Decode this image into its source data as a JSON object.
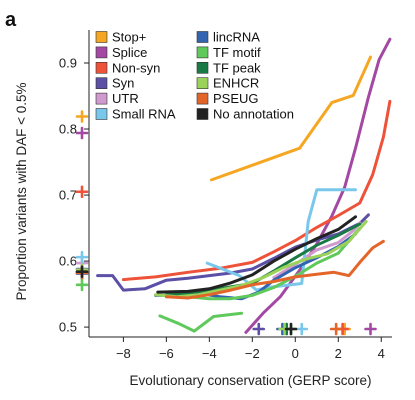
{
  "chart_data": {
    "type": "line",
    "panel_label": "a",
    "title": "",
    "xlabel": "Evolutionary conservation (GERP score)",
    "ylabel": "Proportion variants with DAF < 0.5%",
    "xlim": [
      -9.6,
      4.5
    ],
    "ylim": [
      0.485,
      0.95
    ],
    "x_ticks": [
      -8,
      -6,
      -4,
      -2,
      0,
      2,
      4
    ],
    "x_tick_labels": [
      "−8",
      "−6",
      "−4",
      "−2",
      "0",
      "2",
      "4"
    ],
    "y_ticks": [
      0.5,
      0.6,
      0.7,
      0.8,
      0.9
    ],
    "y_tick_labels": [
      "0.5",
      "0.6",
      "0.7",
      "0.8",
      "0.9"
    ],
    "grid": false,
    "legend_position": "top",
    "series": [
      {
        "name": "Stop+",
        "color": "#f5a623",
        "x": [
          -3.9,
          0.2,
          1.7,
          2.7,
          3.5
        ],
        "y": [
          0.723,
          0.771,
          0.84,
          0.851,
          0.909
        ],
        "marker_y": 0.819,
        "marker_x": 2.3
      },
      {
        "name": "Splice",
        "color": "#a349a4",
        "x": [
          -2.3,
          -1.5,
          -0.7,
          0.2,
          1.0,
          1.7,
          2.3,
          2.8,
          3.4,
          3.9,
          4.4
        ],
        "y": [
          0.492,
          0.521,
          0.546,
          0.586,
          0.626,
          0.668,
          0.712,
          0.771,
          0.848,
          0.905,
          0.936
        ],
        "marker_y": 0.794,
        "marker_x": 3.5
      },
      {
        "name": "Non-syn",
        "color": "#ee5239",
        "x": [
          -8.0,
          -6.5,
          -5.0,
          -3.5,
          -2.0,
          -1.0,
          0.0,
          1.0,
          2.0,
          3.0,
          3.6,
          4.1,
          4.4
        ],
        "y": [
          0.572,
          0.576,
          0.583,
          0.589,
          0.598,
          0.614,
          0.631,
          0.651,
          0.669,
          0.688,
          0.731,
          0.788,
          0.842
        ],
        "marker_y": 0.705,
        "marker_x": 2.2
      },
      {
        "name": "Syn",
        "color": "#5b4fa6",
        "x": [
          -9.2,
          -8.5,
          -8.0,
          -7.0,
          -6.0,
          -5.0,
          -4.0,
          -3.0,
          -2.0,
          -1.0,
          0.0,
          1.0,
          2.0,
          3.0,
          3.4
        ],
        "y": [
          0.578,
          0.578,
          0.556,
          0.558,
          0.571,
          0.574,
          0.578,
          0.582,
          0.588,
          0.604,
          0.621,
          0.632,
          0.641,
          0.657,
          0.67
        ],
        "marker_y": 0.588,
        "marker_x": -1.7
      },
      {
        "name": "UTR",
        "color": "#cf9bcf",
        "x": [
          -1.0,
          0.0,
          1.0,
          2.0,
          2.7,
          3.0
        ],
        "y": [
          0.575,
          0.595,
          0.617,
          0.628,
          0.646,
          0.658
        ],
        "marker_y": 0.597,
        "marker_x": -0.4
      },
      {
        "name": "Small RNA",
        "color": "#79c8ec",
        "x": [
          -4.1,
          -2.6,
          -1.8,
          -1.3,
          0.3,
          0.6,
          1.0,
          1.5,
          2.0,
          2.8
        ],
        "y": [
          0.597,
          0.578,
          0.556,
          0.56,
          0.566,
          0.66,
          0.708,
          0.708,
          0.708,
          0.708
        ],
        "marker_y": 0.606,
        "marker_x": 0.3
      },
      {
        "name": "lincRNA",
        "color": "#3464b0",
        "x": [
          -6.5,
          -5.5,
          -4.5,
          -3.5,
          -2.5,
          -1.7,
          -1.0,
          0.0,
          1.0,
          2.0,
          2.8
        ],
        "y": [
          0.548,
          0.548,
          0.551,
          0.546,
          0.543,
          0.553,
          0.571,
          0.59,
          0.605,
          0.622,
          0.641
        ],
        "marker_y": 0.581,
        "marker_x": -0.6
      },
      {
        "name": "TF motif",
        "color": "#5fc95c",
        "x": [
          -6.0,
          -5.0,
          -4.0,
          -3.0,
          -2.0,
          -1.0,
          0.0,
          1.0,
          2.0,
          3.0
        ],
        "y": [
          0.546,
          0.546,
          0.543,
          0.543,
          0.548,
          0.56,
          0.577,
          0.597,
          0.612,
          0.65
        ],
        "marker_y": 0.564,
        "marker_x": -0.2
      },
      {
        "name": "TF peak",
        "color": "#1a7a45",
        "x": [
          -6.0,
          -5.0,
          -4.0,
          -3.0,
          -2.0,
          -1.0,
          0.0,
          1.0,
          2.0,
          3.0
        ],
        "y": [
          0.549,
          0.551,
          0.556,
          0.561,
          0.566,
          0.585,
          0.605,
          0.624,
          0.639,
          0.656
        ],
        "marker_y": 0.583,
        "marker_x": -0.4
      },
      {
        "name": "ENHCR",
        "color": "#9bd25a",
        "x": [
          -6.5,
          -5.5,
          -4.5,
          -3.5,
          -2.5,
          -1.5,
          -0.5,
          0.5,
          1.5,
          2.5,
          3.3
        ],
        "y": [
          0.549,
          0.546,
          0.549,
          0.556,
          0.563,
          0.575,
          0.591,
          0.603,
          0.611,
          0.63,
          0.66
        ],
        "marker_y": 0.587,
        "marker_x": -0.5
      },
      {
        "name": "PSEUG",
        "color": "#e4652a",
        "x": [
          -6.0,
          -5.0,
          -4.0,
          -3.0,
          -2.0,
          -1.0,
          0.0,
          1.0,
          1.8,
          2.5,
          3.0,
          3.6,
          4.1
        ],
        "y": [
          0.546,
          0.544,
          0.549,
          0.556,
          0.564,
          0.569,
          0.576,
          0.58,
          0.583,
          0.578,
          0.598,
          0.62,
          0.63
        ],
        "marker_y": 0.582,
        "marker_x": 1.9
      },
      {
        "name": "No annotation",
        "color": "#222222",
        "x": [
          -6.4,
          -5.0,
          -4.0,
          -3.0,
          -2.0,
          -1.0,
          0.0,
          1.0,
          2.0,
          2.8
        ],
        "y": [
          0.553,
          0.554,
          0.558,
          0.567,
          0.579,
          0.6,
          0.618,
          0.634,
          0.648,
          0.667
        ],
        "marker_y": 0.584,
        "marker_x": -0.2
      },
      {
        "name": "Short green segment",
        "color": "#5fc95c",
        "legend": false,
        "x": [
          -6.3,
          -5.4,
          -4.7,
          -3.8,
          -2.5
        ],
        "y": [
          0.517,
          0.505,
          0.494,
          0.516,
          0.521
        ],
        "marker_y": null,
        "marker_x": null
      }
    ]
  }
}
